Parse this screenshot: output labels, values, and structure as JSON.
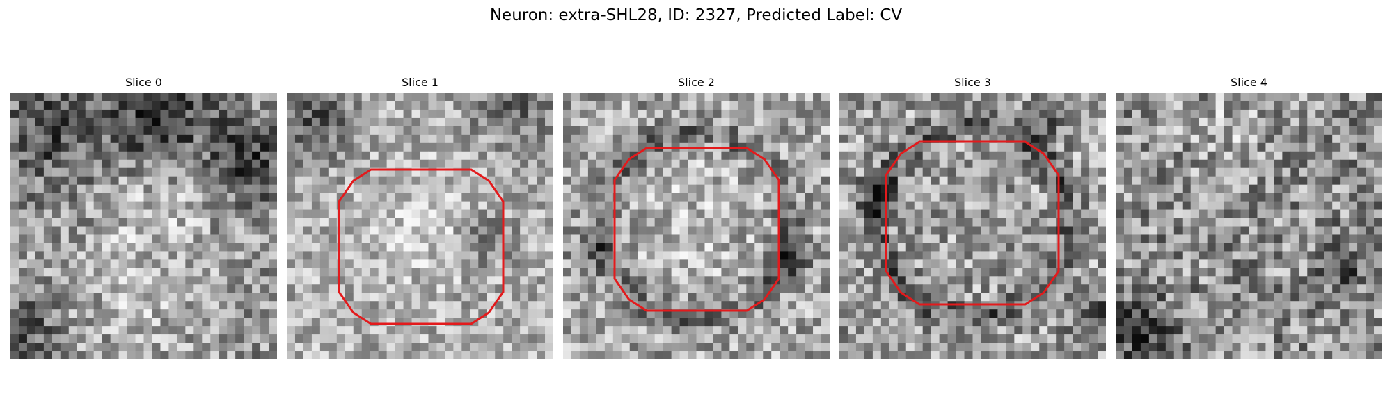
{
  "figure": {
    "title": "Neuron: extra-SHL28, ID: 2327, Predicted Label: CV",
    "roi_color": "#e31a1c",
    "colormap": "gray"
  },
  "slices": [
    {
      "title": "Slice 0",
      "has_roi": false
    },
    {
      "title": "Slice 1",
      "has_roi": true
    },
    {
      "title": "Slice 2",
      "has_roi": true
    },
    {
      "title": "Slice 3",
      "has_roi": true
    },
    {
      "title": "Slice 4",
      "has_roi": false
    }
  ]
}
